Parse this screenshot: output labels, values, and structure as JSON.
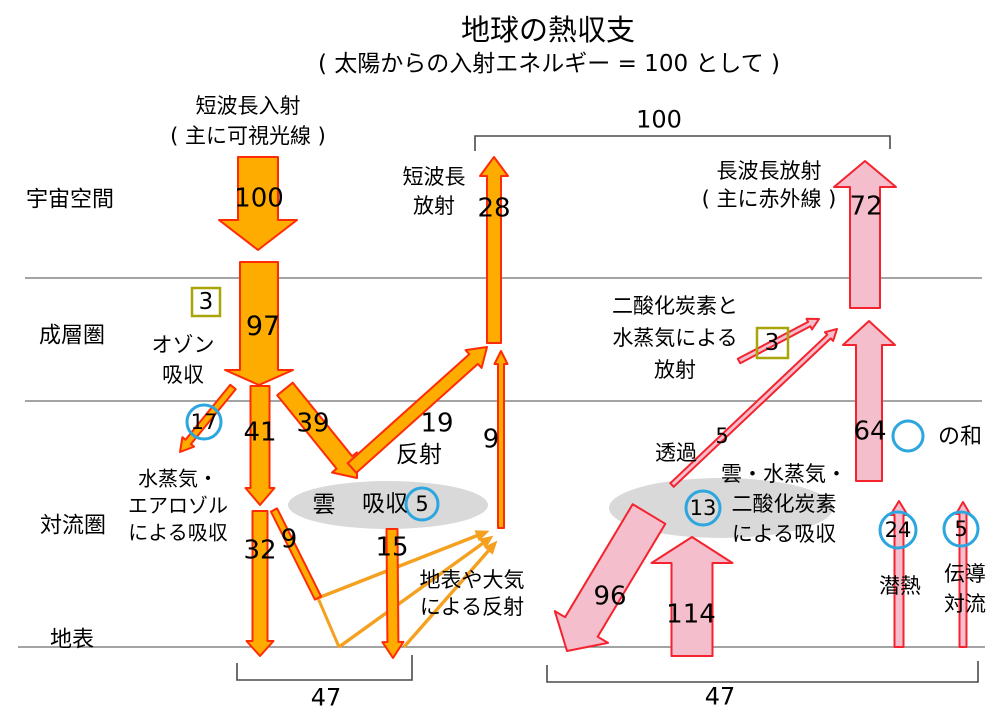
{
  "diagram": {
    "title": "地球の熱収支",
    "subtitle": "( 太陽からの入射エネルギー = 100 として )",
    "regions": {
      "space": "宇宙空間",
      "stratosphere": "成層圏",
      "troposphere": "対流圏",
      "surface": "地表"
    },
    "shortwave": {
      "incoming_label": [
        "短波長入射",
        "( 主に可視光線 )"
      ],
      "incoming_value": "100",
      "ozone_value": "3",
      "ozone_label": [
        "オゾン",
        "吸収"
      ],
      "transmitted_value": "97",
      "vapor_value": "17",
      "mid_value": "41",
      "to_cloud_value": "39",
      "vapor_label": [
        "水蒸気・",
        "エアロゾル",
        "による吸収"
      ],
      "direct_value": "32",
      "air_reflect_value": "9",
      "cloud_label": "雲",
      "cloud_absorb_label": "吸収",
      "cloud_absorb_value": "5",
      "cloud_reflect_value": "19",
      "cloud_reflect_label": "反射",
      "through_cloud_value": "15",
      "up_reflect_value": "9",
      "surface_reflect_label": [
        "地表や大気",
        "による反射"
      ],
      "outgoing_label": [
        "短波長",
        "放射"
      ],
      "outgoing_value": "28",
      "space_total_value": "100",
      "surface_total_value": "47"
    },
    "longwave": {
      "outgoing_label": [
        "長波長放射",
        "( 主に赤外線 )"
      ],
      "outgoing_value": "72",
      "co2_label": [
        "二酸化炭素と",
        "水蒸気による",
        "放射"
      ],
      "co2_value": "3",
      "through_label": "透過",
      "through_value": "5",
      "sum_value": "64",
      "sum_label": "の和",
      "absorb_label": [
        "雲・水蒸気・",
        "二酸化炭素",
        "による吸収"
      ],
      "absorb_value": "13",
      "back_value": "96",
      "surface_emit_value": "114",
      "latent_value": "24",
      "latent_label": "潜熱",
      "conduction_value": "5",
      "conduction_label": [
        "伝導",
        "対流"
      ],
      "surface_total_value": "47"
    },
    "colors": {
      "shortwave_fill": "#FFAC00",
      "shortwave_outline": "#FF2B05",
      "ray": "#F5A01E",
      "longwave_fill": "#F4BECC",
      "longwave_outline": "#F4232E",
      "cloud": "#D9D9D9",
      "circle": "#2CA6DF",
      "box": "#A9A408",
      "line": "#6E6E6E",
      "bracket": "#4A4A4A"
    }
  }
}
